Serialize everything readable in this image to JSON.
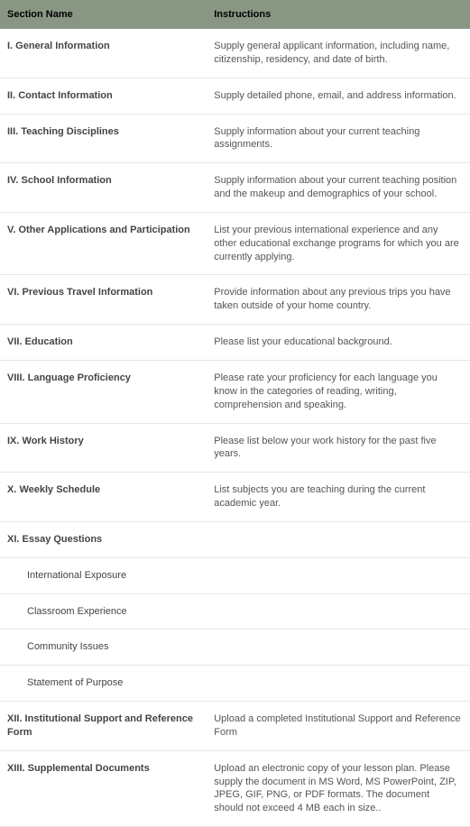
{
  "headers": {
    "section_name": "Section Name",
    "instructions": "Instructions"
  },
  "rows": [
    {
      "name": "I. General Information",
      "sub": false,
      "instructions": "Supply general applicant information, including name, citizenship, residency, and date of birth."
    },
    {
      "name": "II. Contact Information",
      "sub": false,
      "instructions": "Supply detailed phone, email, and address information."
    },
    {
      "name": "III. Teaching Disciplines",
      "sub": false,
      "instructions": "Supply information about your current teaching assignments."
    },
    {
      "name": "IV. School Information",
      "sub": false,
      "instructions": "Supply information about your current teaching position and the makeup and demographics of your school."
    },
    {
      "name": "V. Other Applications and Participation",
      "sub": false,
      "instructions": "List your previous international experience and any other educational exchange programs for which you are currently applying."
    },
    {
      "name": "VI. Previous Travel Information",
      "sub": false,
      "instructions": "Provide information about any previous trips you have taken outside of your home country."
    },
    {
      "name": "VII. Education",
      "sub": false,
      "instructions": "Please list your educational background."
    },
    {
      "name": "VIII. Language Proficiency",
      "sub": false,
      "instructions": "Please rate your proficiency for each language you know in the categories of reading, writing, comprehension and speaking."
    },
    {
      "name": "IX. Work History",
      "sub": false,
      "instructions": "Please list below your work history for the past five years."
    },
    {
      "name": "X. Weekly Schedule",
      "sub": false,
      "instructions": "List subjects you are teaching during the current academic year."
    },
    {
      "name": "XI. Essay Questions",
      "sub": false,
      "instructions": ""
    },
    {
      "name": "International Exposure",
      "sub": true,
      "instructions": ""
    },
    {
      "name": "Classroom Experience",
      "sub": true,
      "instructions": ""
    },
    {
      "name": "Community Issues",
      "sub": true,
      "instructions": ""
    },
    {
      "name": "Statement of Purpose",
      "sub": true,
      "instructions": ""
    },
    {
      "name": "XII. Institutional Support and Reference Form",
      "sub": false,
      "instructions": "Upload a completed Institutional Support and Reference Form"
    },
    {
      "name": "XIII. Supplemental Documents",
      "sub": false,
      "instructions": "Upload an electronic copy of your lesson plan. Please supply the document in MS Word, MS PowerPoint, ZIP, JPEG, GIF, PNG, or PDF formats. The document should not exceed 4 MB each in size.."
    }
  ]
}
